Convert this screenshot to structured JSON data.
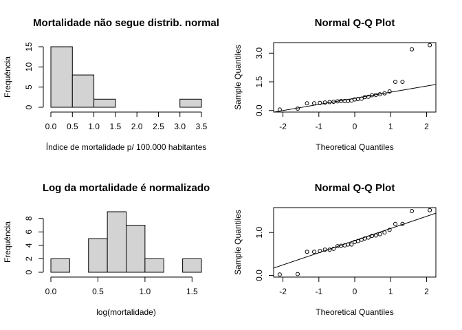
{
  "chart_data": [
    {
      "type": "histogram",
      "title": "Mortalidade não segue distrib. normal",
      "x_label": "Índice de mortalidade p/ 100.000 habitantes",
      "y_label": "Frequência",
      "bins": [
        0,
        0.5,
        1,
        1.5,
        2,
        2.5,
        3,
        3.5
      ],
      "counts": [
        15,
        8,
        2,
        0,
        0,
        0,
        2
      ],
      "color": "#d3d3d3",
      "xlim": [
        0,
        3.5
      ],
      "ylim": [
        0,
        15
      ],
      "xticks": [
        {
          "value": 0,
          "label": "0.0"
        },
        {
          "value": 0.5,
          "label": "0.5"
        },
        {
          "value": 1,
          "label": "1.0"
        },
        {
          "value": 1.5,
          "label": "1.5"
        },
        {
          "value": 2,
          "label": "2.0"
        },
        {
          "value": 2.5,
          "label": "2.5"
        },
        {
          "value": 3,
          "label": "3.0"
        },
        {
          "value": 3.5,
          "label": "3.5"
        }
      ],
      "yticks": [
        0,
        5,
        10,
        15
      ]
    },
    {
      "type": "qq",
      "title": "Normal Q-Q Plot",
      "x_label": "Theoretical Quantiles",
      "y_label": "Sample Quantiles",
      "x": [
        -2.09,
        -1.59,
        -1.33,
        -1.13,
        -0.97,
        -0.83,
        -0.7,
        -0.59,
        -0.48,
        -0.38,
        -0.28,
        -0.19,
        -0.09,
        0,
        0.09,
        0.19,
        0.28,
        0.38,
        0.48,
        0.59,
        0.7,
        0.83,
        0.97,
        1.13,
        1.33,
        1.59,
        2.09
      ],
      "y": [
        0.05,
        0.1,
        0.38,
        0.38,
        0.4,
        0.42,
        0.44,
        0.46,
        0.48,
        0.5,
        0.5,
        0.5,
        0.52,
        0.58,
        0.6,
        0.62,
        0.7,
        0.72,
        0.8,
        0.82,
        0.85,
        0.9,
        1.0,
        1.5,
        1.5,
        3.2,
        3.42
      ],
      "reference_line": {
        "intercept": 0.64,
        "slope": 0.32
      },
      "xlim": [
        -2.26,
        2.26
      ],
      "ylim": [
        -0.08,
        3.55
      ],
      "xticks": [
        -2,
        -1,
        0,
        1,
        2
      ],
      "yticks": [
        {
          "value": 0,
          "label": "0.0"
        },
        {
          "value": 1.5,
          "label": "1.5"
        },
        {
          "value": 3,
          "label": "3.0"
        }
      ]
    },
    {
      "type": "histogram",
      "title": "Log da mortalidade é normalizado",
      "x_label": "log(mortalidade)",
      "y_label": "Frequência",
      "bins": [
        0,
        0.2,
        0.4,
        0.6,
        0.8,
        1.0,
        1.2,
        1.4,
        1.6
      ],
      "counts": [
        2,
        0,
        5,
        9,
        7,
        2,
        0,
        2
      ],
      "color": "#d3d3d3",
      "xlim": [
        0,
        1.6
      ],
      "ylim": [
        0,
        9
      ],
      "xticks": [
        {
          "value": 0,
          "label": "0.0"
        },
        {
          "value": 0.5,
          "label": "0.5"
        },
        {
          "value": 1,
          "label": "1.0"
        },
        {
          "value": 1.5,
          "label": "1.5"
        }
      ],
      "yticks": [
        0,
        2,
        4,
        6,
        8
      ]
    },
    {
      "type": "qq",
      "title": "Normal Q-Q Plot",
      "x_label": "Theoretical Quantiles",
      "y_label": "Sample Quantiles",
      "x": [
        -2.09,
        -1.59,
        -1.33,
        -1.13,
        -0.97,
        -0.83,
        -0.7,
        -0.59,
        -0.48,
        -0.38,
        -0.28,
        -0.19,
        -0.09,
        0,
        0.09,
        0.19,
        0.28,
        0.38,
        0.48,
        0.59,
        0.7,
        0.83,
        0.97,
        1.13,
        1.33,
        1.59,
        2.09
      ],
      "y": [
        0.02,
        0.03,
        0.55,
        0.55,
        0.57,
        0.6,
        0.6,
        0.62,
        0.68,
        0.69,
        0.7,
        0.72,
        0.72,
        0.78,
        0.8,
        0.83,
        0.86,
        0.88,
        0.92,
        0.93,
        0.96,
        1.0,
        1.06,
        1.2,
        1.2,
        1.5,
        1.52
      ],
      "reference_line": {
        "intercept": 0.81,
        "slope": 0.283
      },
      "xlim": [
        -2.26,
        2.26
      ],
      "ylim": [
        -0.04,
        1.58
      ],
      "xticks": [
        -2,
        -1,
        0,
        1,
        2
      ],
      "yticks": [
        {
          "value": 0,
          "label": "0.0"
        },
        {
          "value": 1,
          "label": "1.0"
        }
      ]
    }
  ]
}
